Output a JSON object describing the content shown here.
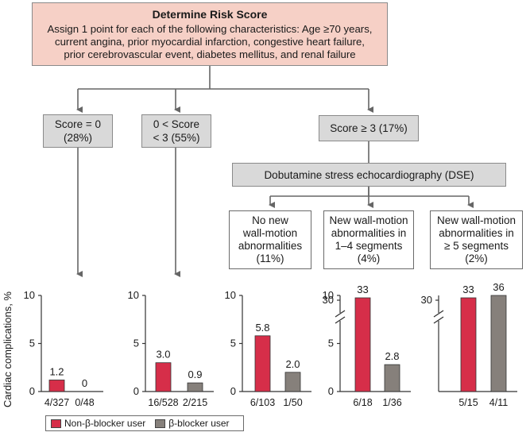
{
  "colors": {
    "nonbeta": "#d62e49",
    "beta": "#86807b",
    "risk_box": "#f6d0c6",
    "gray_box": "#d9d9d9"
  },
  "risk_box": {
    "title": "Determine Risk Score",
    "lines": [
      "Assign 1 point for each of the following characteristics: Age ≥70 years,",
      "current angina, prior myocardial infarction, congestive heart failure,",
      "prior cerebrovascular event, diabetes mellitus, and renal failure"
    ]
  },
  "score_boxes": [
    {
      "lines": [
        "Score = 0",
        "(28%)"
      ]
    },
    {
      "lines": [
        "0 < Score",
        "< 3 (55%)"
      ]
    },
    {
      "lines": [
        "Score ≥ 3 (17%)"
      ]
    }
  ],
  "dse_box": {
    "label": "Dobutamine stress echocardiography (DSE)"
  },
  "dse_outcomes": [
    {
      "lines": [
        "No new",
        "wall-motion",
        "abnormalities",
        "(11%)"
      ]
    },
    {
      "lines": [
        "New wall-motion",
        "abnormalities in",
        "1–4 segments",
        "(4%)"
      ]
    },
    {
      "lines": [
        "New wall-motion",
        "abnormalities in",
        "≥ 5 segments",
        "(2%)"
      ]
    }
  ],
  "y_axis_label": "Cardiac complications, %",
  "chart_data": [
    {
      "type": "bar",
      "ylim": [
        0,
        10
      ],
      "yticks": [
        "0",
        "5",
        "10"
      ],
      "categories": [
        "4/327",
        "0/48"
      ],
      "values": [
        1.2,
        0
      ],
      "value_labels": [
        "1.2",
        "0"
      ]
    },
    {
      "type": "bar",
      "ylim": [
        0,
        10
      ],
      "yticks": [
        "0",
        "5",
        "10"
      ],
      "categories": [
        "16/528",
        "2/215"
      ],
      "values": [
        3.0,
        0.9
      ],
      "value_labels": [
        "3.0",
        "0.9"
      ]
    },
    {
      "type": "bar",
      "ylim": [
        0,
        10
      ],
      "yticks": [
        "0",
        "5",
        "10"
      ],
      "categories": [
        "6/103",
        "1/50"
      ],
      "values": [
        5.8,
        2.0
      ],
      "value_labels": [
        "5.8",
        "2.0"
      ]
    },
    {
      "type": "bar",
      "broken_axis": true,
      "yticks": [
        "0",
        "5",
        "10",
        "30"
      ],
      "categories": [
        "6/18",
        "1/36"
      ],
      "values": [
        33,
        2.8
      ],
      "value_labels": [
        "33",
        "2.8"
      ]
    },
    {
      "type": "bar",
      "broken_axis": true,
      "yticks": [
        "30"
      ],
      "categories": [
        "5/15",
        "4/11"
      ],
      "values": [
        33,
        36
      ],
      "value_labels": [
        "33",
        "36"
      ]
    }
  ],
  "legend": [
    {
      "label": "Non-β-blocker user",
      "color": "#d62e49"
    },
    {
      "label": "β-blocker user",
      "color": "#86807b"
    }
  ]
}
